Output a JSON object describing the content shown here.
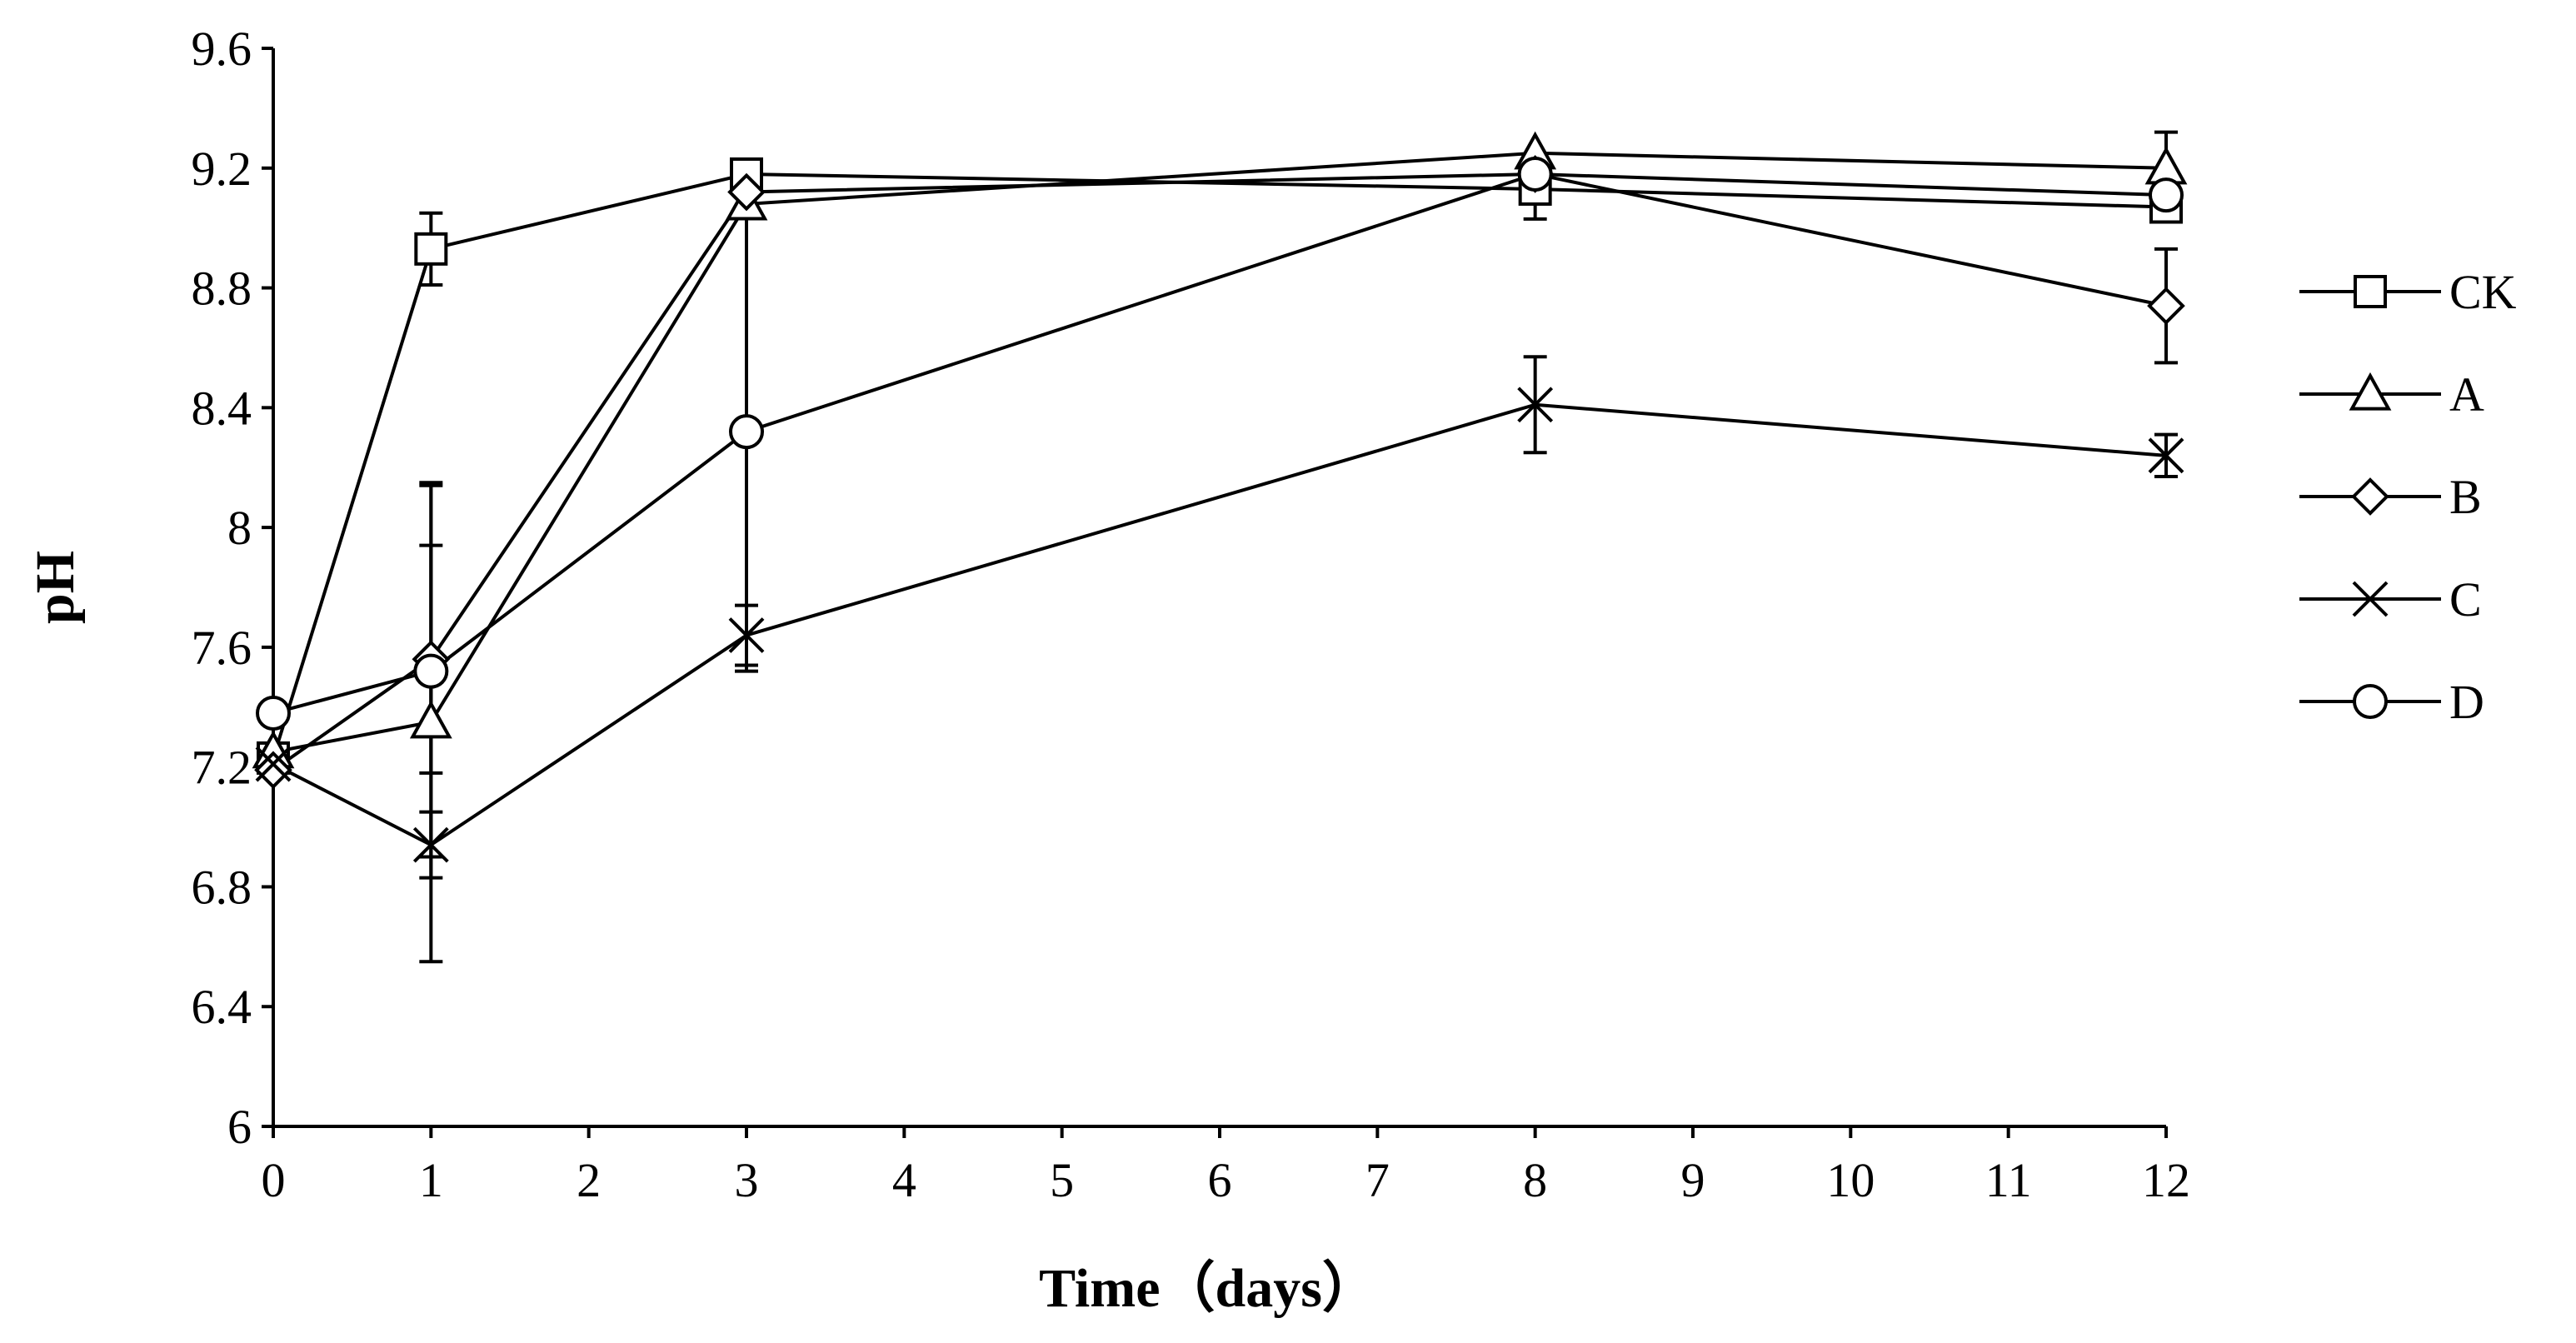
{
  "chart_data": {
    "type": "line",
    "title": "",
    "xlabel": "Time（days）",
    "ylabel": "pH",
    "xlim": [
      0,
      12
    ],
    "ylim": [
      6,
      9.6
    ],
    "x_ticks": [
      "0",
      "1",
      "2",
      "3",
      "4",
      "5",
      "6",
      "7",
      "8",
      "9",
      "10",
      "11",
      "12"
    ],
    "y_ticks": [
      "6",
      "6.4",
      "6.8",
      "7.2",
      "7.6",
      "8",
      "8.4",
      "8.8",
      "9.2",
      "9.6"
    ],
    "grid": false,
    "legend_position": "right",
    "x": [
      0,
      1,
      3,
      8,
      12
    ],
    "series": [
      {
        "name": "CK",
        "marker": "square",
        "values": [
          7.23,
          8.93,
          9.18,
          9.13,
          9.07
        ],
        "errors": [
          0.03,
          0.12,
          0.03,
          0.1,
          0.05
        ]
      },
      {
        "name": "A",
        "marker": "triangle",
        "values": [
          7.25,
          7.35,
          9.08,
          9.25,
          9.2
        ],
        "errors": [
          0.03,
          0.8,
          0.03,
          0.03,
          0.12
        ]
      },
      {
        "name": "B",
        "marker": "diamond",
        "values": [
          7.19,
          7.56,
          9.12,
          9.18,
          8.74
        ],
        "errors": [
          0.02,
          0.38,
          0.03,
          0.03,
          0.19
        ]
      },
      {
        "name": "C",
        "marker": "cross",
        "values": [
          7.21,
          6.94,
          7.64,
          8.41,
          8.24
        ],
        "errors": [
          0.02,
          0.11,
          0.1,
          0.16,
          0.07
        ]
      },
      {
        "name": "D",
        "marker": "circle",
        "values": [
          7.38,
          7.52,
          8.32,
          9.18,
          9.11
        ],
        "errors": [
          0.02,
          0.62,
          0.8,
          0.03,
          0.04
        ]
      }
    ]
  }
}
